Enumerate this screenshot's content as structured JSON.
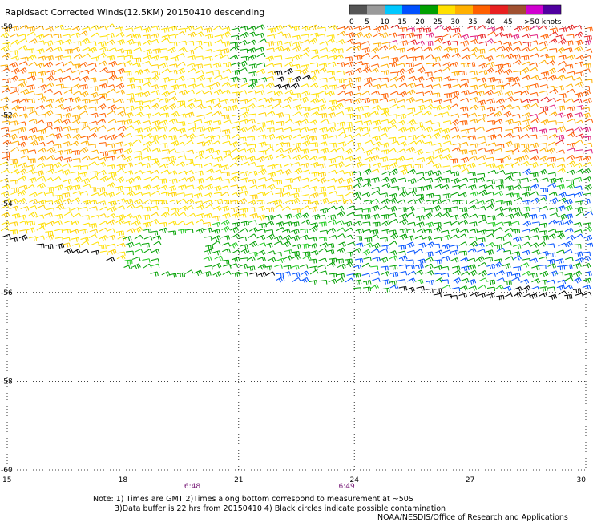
{
  "title": "Rapidsact Corrected Winds(12.5KM) 20150410 descending",
  "scale": {
    "labels": [
      "0",
      "5",
      "10",
      "15",
      "20",
      "25",
      "30",
      "35",
      "40",
      "45",
      ">50 knots"
    ],
    "colors": [
      "#555555",
      "#9a9a9a",
      "#00c8ff",
      "#0050ff",
      "#00a000",
      "#ffe000",
      "#ffb000",
      "#ff6000",
      "#e82020",
      "#a05030",
      "#d000d0",
      "#5000a0"
    ]
  },
  "map": {
    "x_ticks": [
      "15",
      "18",
      "21",
      "24",
      "27",
      "30"
    ],
    "y_ticks": [
      "-50",
      "-52",
      "-54",
      "-56",
      "-58",
      "-60"
    ],
    "lon_range": [
      15,
      30
    ],
    "lat_range": [
      -60,
      -50
    ],
    "time_labels": [
      {
        "text": "6:48",
        "lon": 19.8
      },
      {
        "text": "6:49",
        "lon": 23.8
      }
    ]
  },
  "notes": {
    "line1": "Note: 1) Times are GMT 2)Times along bottom correspond to measurement at ~50S",
    "line2": "3)Data buffer is 22 hrs from 20150410 4) Black circles indicate possible contamination",
    "line3": "NOAA/NESDIS/Office of Research and Applications"
  }
}
